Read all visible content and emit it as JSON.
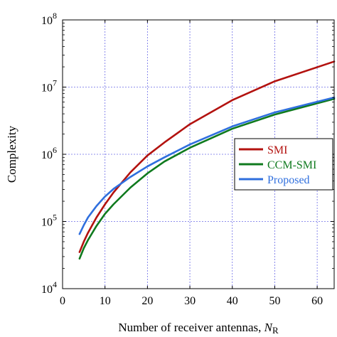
{
  "chart_data": {
    "type": "line",
    "xlabel": "Number of receiver antennas, ",
    "xlabel_var": "N",
    "xlabel_sub": "R",
    "ylabel": "Complexity",
    "xlim": [
      0,
      64
    ],
    "ylim": [
      10000,
      100000000
    ],
    "yscale": "log",
    "x_ticks": [
      0,
      10,
      20,
      30,
      40,
      50,
      60
    ],
    "x_tick_labels": [
      "0",
      "10",
      "20",
      "30",
      "40",
      "50",
      "60"
    ],
    "y_ticks": [
      10000,
      100000,
      1000000,
      10000000,
      100000000
    ],
    "y_tick_base": "10",
    "y_tick_exponents": [
      "4",
      "5",
      "6",
      "7",
      "8"
    ],
    "grid": true,
    "legend_position": "right-center",
    "series": [
      {
        "name": "SMI",
        "color": "#b3120f",
        "x": [
          4,
          5,
          6,
          8,
          10,
          12,
          16,
          20,
          24,
          30,
          40,
          50,
          64
        ],
        "y": [
          35000,
          50000,
          68000,
          115000,
          180000,
          270000,
          540000,
          960000,
          1500000,
          2800000,
          6400000,
          12200000,
          24000000
        ]
      },
      {
        "name": "CCM-SMI",
        "color": "#0f7a1e",
        "x": [
          4,
          5,
          6,
          8,
          10,
          12,
          16,
          20,
          24,
          30,
          40,
          50,
          64
        ],
        "y": [
          28000,
          40000,
          53000,
          86000,
          130000,
          180000,
          320000,
          520000,
          780000,
          1250000,
          2400000,
          3900000,
          6700000
        ]
      },
      {
        "name": "Proposed",
        "color": "#2f6fde",
        "x": [
          4,
          5,
          6,
          8,
          10,
          12,
          16,
          20,
          24,
          30,
          40,
          50,
          64
        ],
        "y": [
          65000,
          88000,
          115000,
          170000,
          235000,
          305000,
          460000,
          660000,
          900000,
          1400000,
          2600000,
          4200000,
          7000000
        ]
      }
    ]
  }
}
